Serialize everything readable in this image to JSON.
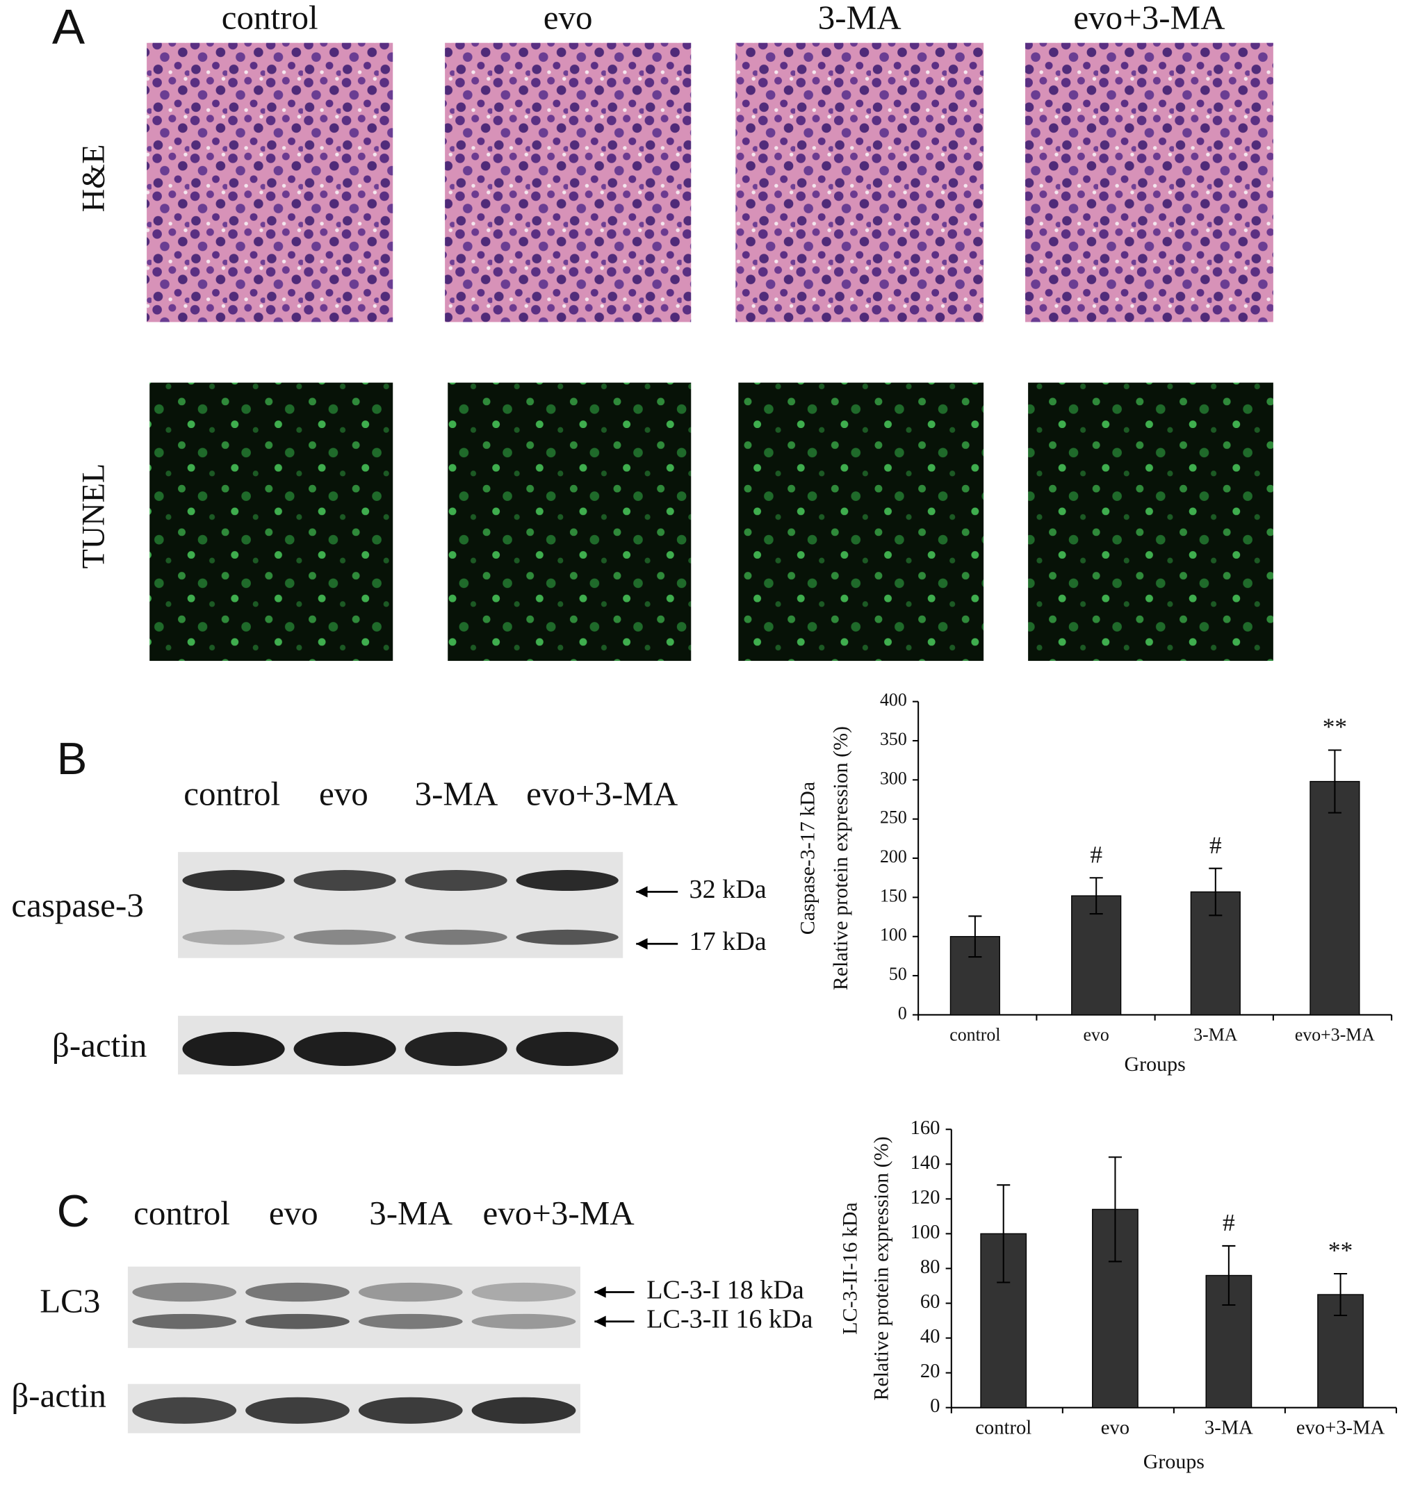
{
  "figure": {
    "panel_labels": [
      "A",
      "B",
      "C"
    ],
    "conditions": [
      "control",
      "evo",
      "3-MA",
      "evo+3-MA"
    ],
    "row_labels": [
      "H&E",
      "TUNEL"
    ],
    "blot_b": {
      "protein": "caspase-3",
      "loading": "β-actin",
      "bands": [
        "32 kDa",
        "17 kDa"
      ]
    },
    "blot_c": {
      "protein": "LC3",
      "loading": "β-actin",
      "bands": [
        "LC-3-I  18 kDa",
        "LC-3-II 16 kDa"
      ]
    }
  },
  "chart_data": [
    {
      "type": "bar",
      "ylabel": [
        "Caspase-3-17 kDa",
        "Relative protein expression (%)"
      ],
      "xlabel": "Groups",
      "categories": [
        "control",
        "evo",
        "3-MA",
        "evo+3-MA"
      ],
      "values": [
        100,
        152,
        157,
        298
      ],
      "errors": [
        26,
        23,
        30,
        40
      ],
      "annotations": [
        {
          "index": 1,
          "text": "#"
        },
        {
          "index": 2,
          "text": "#"
        },
        {
          "index": 3,
          "text": "**"
        }
      ],
      "color": "#333333",
      "ylim": [
        0,
        400
      ],
      "yticks": [
        0,
        50,
        100,
        150,
        200,
        250,
        300,
        350,
        400
      ]
    },
    {
      "type": "bar",
      "ylabel": [
        "LC-3-II-16 kDa",
        "Relative protein expression (%)"
      ],
      "xlabel": "Groups",
      "categories": [
        "control",
        "evo",
        "3-MA",
        "evo+3-MA"
      ],
      "values": [
        100,
        114,
        76,
        65
      ],
      "errors": [
        28,
        30,
        17,
        12
      ],
      "annotations": [
        {
          "index": 2,
          "text": "#"
        },
        {
          "index": 3,
          "text": "**"
        }
      ],
      "color": "#333333",
      "ylim": [
        0,
        160
      ],
      "yticks": [
        0,
        20,
        40,
        60,
        80,
        100,
        120,
        140,
        160
      ]
    }
  ]
}
